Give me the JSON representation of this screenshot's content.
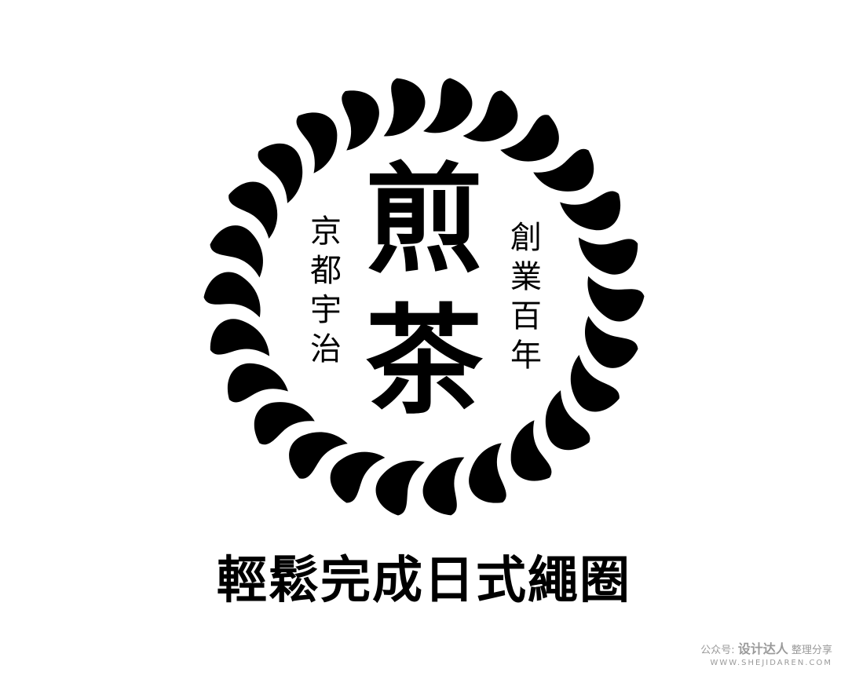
{
  "logo": {
    "main_char_1": "煎",
    "main_char_2": "茶",
    "left_vertical": "京都宇治",
    "right_vertical": "創業百年",
    "rope_color": "#000000",
    "background": "#ffffff"
  },
  "caption": "輕鬆完成日式繩圈",
  "watermark": {
    "prefix": "公众号:",
    "brand": "设计达人",
    "suffix": "整理分享",
    "url": "WWW.SHEJIDAREN.COM"
  }
}
